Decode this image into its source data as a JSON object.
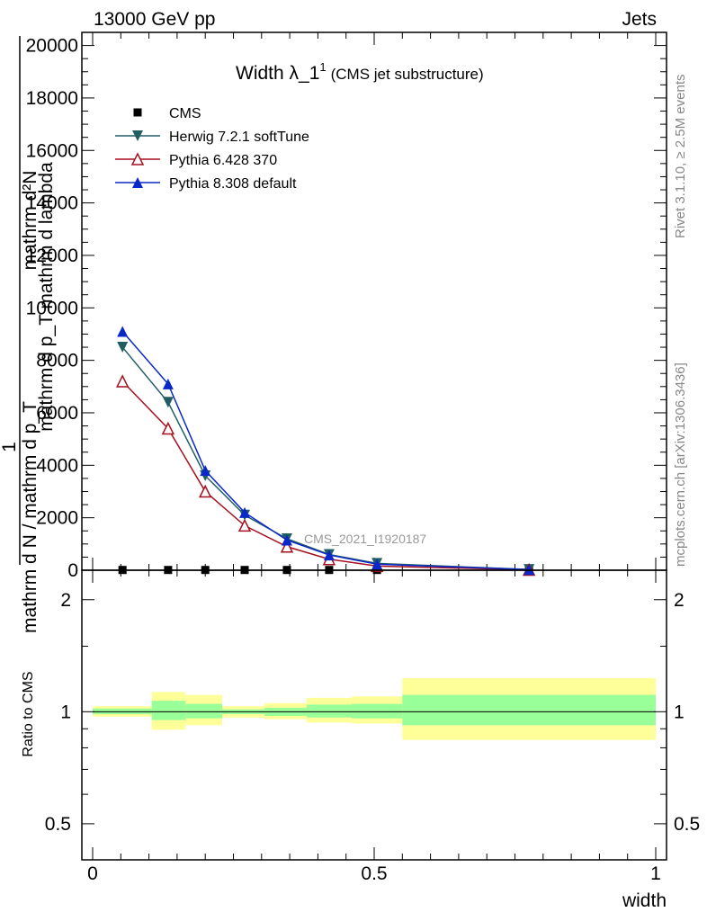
{
  "header": {
    "left": "13000 GeV pp",
    "right": "Jets"
  },
  "side": {
    "rivet": "Rivet 3.1.10, ≥ 2.5M events",
    "mcplots": "mcplots.cern.ch [arXiv:1306.3436]"
  },
  "colors": {
    "cms": "#000000",
    "herwig": "#215e64",
    "pythia6": "#a50f1e",
    "pythia8": "#0a28c8",
    "band_inner": "#99ff99",
    "band_outer": "#ffff99"
  },
  "chart_data": [
    {
      "type": "line",
      "title": "Width λ_1",
      "title_superscript": "1",
      "subtitle": "(CMS jet substructure)",
      "watermark": "CMS_2021_I1920187",
      "xlabel": "width",
      "ylabel_numerator": "mathrm d²N",
      "ylabel_numerator_lower": "mathrm d p_T mathrm d lambda",
      "ylabel_denominator": "mathrm d N / mathrm d p_T",
      "ylabel_prefix": "1",
      "xlim": [
        0,
        1
      ],
      "ylim": [
        0,
        20500
      ],
      "yticks": [
        0,
        2000,
        4000,
        6000,
        8000,
        10000,
        12000,
        14000,
        16000,
        18000,
        20000
      ],
      "ytick_labels": [
        "0",
        "2000",
        "4000",
        "6000",
        "8000",
        "10000",
        "12000",
        "14000",
        "16000",
        "18000",
        "20000"
      ],
      "legend_position": "top-left",
      "series": [
        {
          "name": "CMS",
          "marker": "square",
          "color_key": "cms",
          "x": [
            0.053,
            0.134,
            0.2,
            0.27,
            0.345,
            0.42,
            0.505,
            0.775
          ],
          "y": [
            10,
            10,
            10,
            10,
            10,
            10,
            10,
            10
          ]
        },
        {
          "name": "Herwig 7.2.1 softTune",
          "marker": "triangle-down",
          "color_key": "herwig",
          "x": [
            0.053,
            0.134,
            0.2,
            0.27,
            0.345,
            0.42,
            0.505,
            0.775
          ],
          "y": [
            8500,
            6400,
            3600,
            2100,
            1200,
            600,
            260,
            30
          ]
        },
        {
          "name": "Pythia 6.428 370",
          "marker": "triangle-up-open",
          "color_key": "pythia6",
          "x": [
            0.053,
            0.134,
            0.2,
            0.27,
            0.345,
            0.42,
            0.505,
            0.775
          ],
          "y": [
            7200,
            5400,
            3000,
            1700,
            900,
            420,
            160,
            15
          ]
        },
        {
          "name": "Pythia 8.308 default",
          "marker": "triangle-up",
          "color_key": "pythia8",
          "x": [
            0.053,
            0.134,
            0.2,
            0.27,
            0.345,
            0.42,
            0.505,
            0.775
          ],
          "y": [
            9100,
            7100,
            3800,
            2200,
            1150,
            580,
            230,
            25
          ]
        }
      ]
    },
    {
      "type": "area",
      "ylabel": "Ratio to CMS",
      "xlabel": "width",
      "xlim": [
        0,
        1
      ],
      "ylim": [
        0.4,
        2.4
      ],
      "log_y": true,
      "yticks": [
        0.5,
        1,
        2
      ],
      "ytick_labels": [
        "0.5",
        "1",
        "2"
      ],
      "xticks": [
        0,
        0.5,
        1
      ],
      "xtick_labels": [
        "0",
        "0.5",
        "1"
      ],
      "reference_line": 1,
      "bins": [
        {
          "x0": 0.0,
          "x1": 0.105,
          "inner": [
            0.985,
            1.02
          ],
          "outer": [
            0.97,
            1.035
          ]
        },
        {
          "x0": 0.105,
          "x1": 0.165,
          "inner": [
            0.95,
            1.07
          ],
          "outer": [
            0.895,
            1.13
          ]
        },
        {
          "x0": 0.165,
          "x1": 0.23,
          "inner": [
            0.96,
            1.05
          ],
          "outer": [
            0.92,
            1.11
          ]
        },
        {
          "x0": 0.23,
          "x1": 0.305,
          "inner": [
            0.985,
            1.015
          ],
          "outer": [
            0.965,
            1.035
          ]
        },
        {
          "x0": 0.305,
          "x1": 0.38,
          "inner": [
            0.975,
            1.025
          ],
          "outer": [
            0.955,
            1.055
          ]
        },
        {
          "x0": 0.38,
          "x1": 0.46,
          "inner": [
            0.965,
            1.045
          ],
          "outer": [
            0.935,
            1.09
          ]
        },
        {
          "x0": 0.46,
          "x1": 0.55,
          "inner": [
            0.96,
            1.05
          ],
          "outer": [
            0.93,
            1.1
          ]
        },
        {
          "x0": 0.55,
          "x1": 1.0,
          "inner": [
            0.92,
            1.11
          ],
          "outer": [
            0.84,
            1.23
          ]
        }
      ]
    }
  ]
}
